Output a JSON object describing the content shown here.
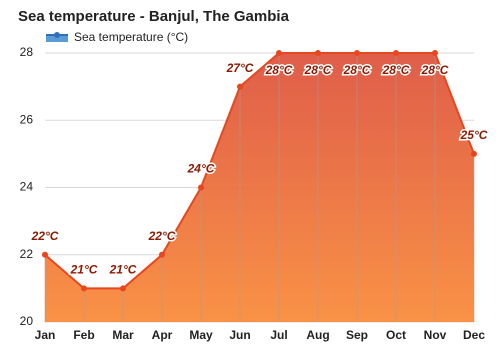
{
  "chart_data": {
    "type": "area",
    "title": "Sea temperature - Banjul, The Gambia",
    "categories": [
      "Jan",
      "Feb",
      "Mar",
      "Apr",
      "May",
      "Jun",
      "Jul",
      "Aug",
      "Sep",
      "Oct",
      "Nov",
      "Dec"
    ],
    "series": [
      {
        "name": "Sea temperature (°C)",
        "color": "#e8461e",
        "values": [
          22,
          21,
          21,
          22,
          24,
          27,
          28,
          28,
          28,
          28,
          28,
          25
        ],
        "value_labels": [
          "22°C",
          "21°C",
          "21°C",
          "22°C",
          "24°C",
          "27°C",
          "28°C",
          "28°C",
          "28°C",
          "28°C",
          "28°C",
          "25°C"
        ]
      }
    ],
    "ylim": [
      20,
      28
    ],
    "yticks": [
      20,
      22,
      24,
      26,
      28
    ],
    "grid": true
  }
}
